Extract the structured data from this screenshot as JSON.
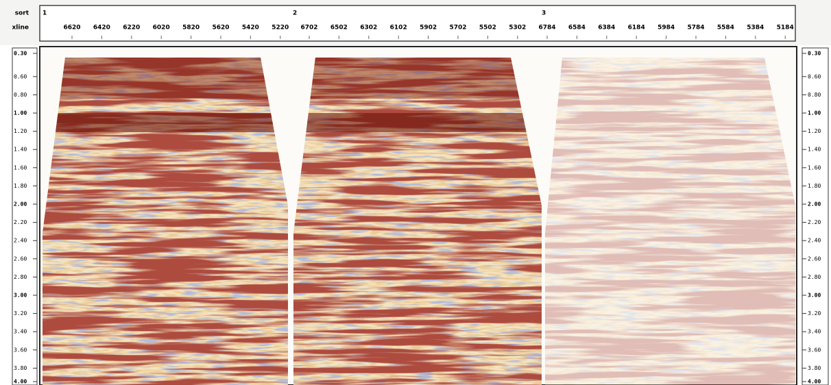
{
  "header": {
    "sort_label": "sort",
    "xline_label": "xline",
    "sort_values": [
      "1",
      "2",
      "3"
    ],
    "xlines": [
      [
        "6620",
        "6420",
        "6220",
        "6020",
        "5820",
        "5620",
        "5420",
        "5220"
      ],
      [
        "6702",
        "6502",
        "6302",
        "6102",
        "5902",
        "5702",
        "5502",
        "5302"
      ],
      [
        "6784",
        "6584",
        "6384",
        "6184",
        "5984",
        "5784",
        "5584",
        "5384",
        "5184"
      ]
    ]
  },
  "time_axis": {
    "labels": [
      "0.30",
      "0.60",
      "0.80",
      "1.00",
      "1.20",
      "1.40",
      "1.60",
      "1.80",
      "2.00",
      "2.20",
      "2.40",
      "2.60",
      "2.80",
      "3.00",
      "3.20",
      "3.40",
      "3.60",
      "3.80",
      "4.00"
    ]
  }
}
